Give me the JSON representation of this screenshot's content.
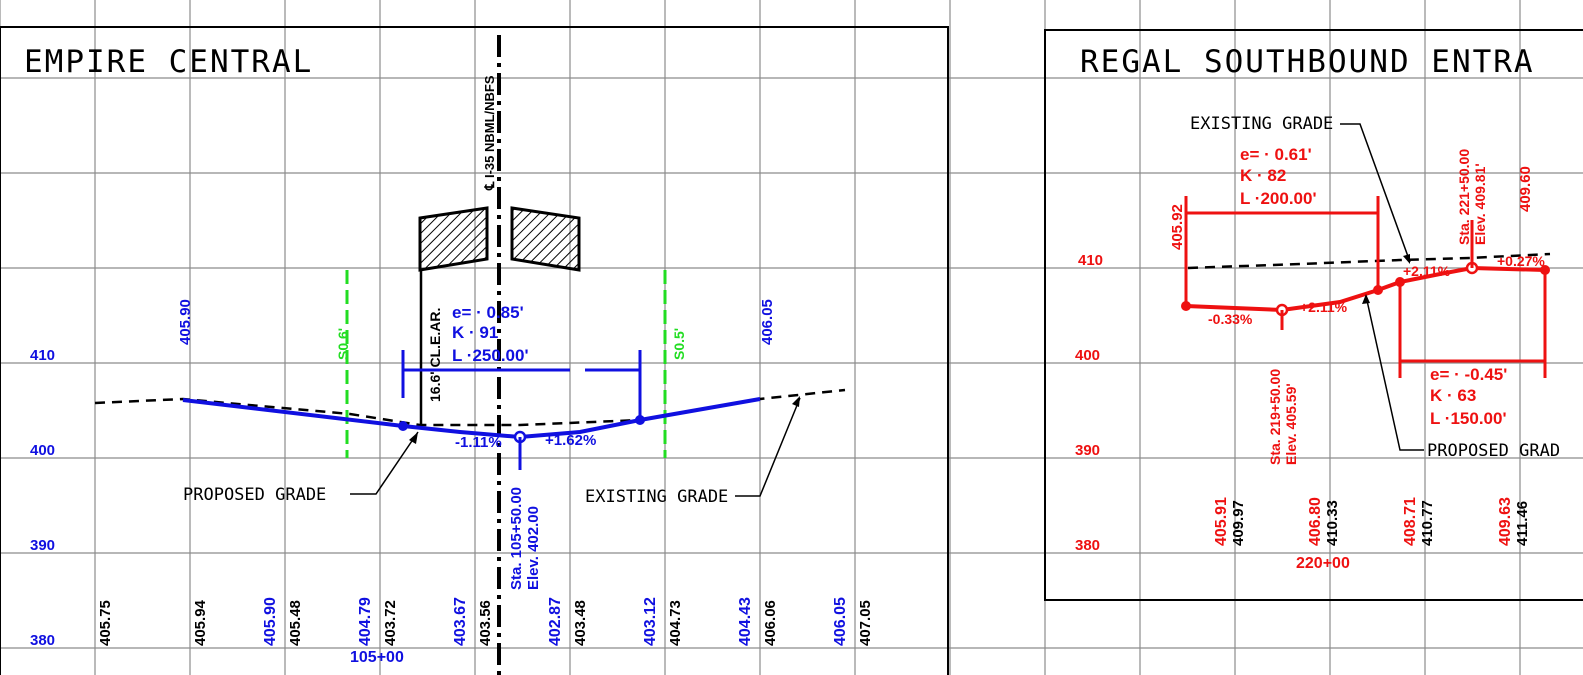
{
  "left": {
    "title": "EMPIRE CENTRAL",
    "centerline": "℄ I-35 NBML/NBFS",
    "clearance": "16.6' CL.E.AR.",
    "curve": {
      "e": "e= · 0.85'",
      "k": "K · 91",
      "l": "L ·250.00'"
    },
    "elev_left_top": "405.90",
    "elev_right_top": "406.05",
    "green_left": "S0.6'",
    "green_right": "S0.5'",
    "elev_labels": [
      "410",
      "400",
      "390",
      "380"
    ],
    "proposed_grade": "PROPOSED GRADE",
    "existing_grade": "EXISTING GRADE",
    "grades": [
      "-1.11%",
      "+1.62%"
    ],
    "pvi_station": "Sta. 105+50.00",
    "pvi_elev": "Elev. 402.00",
    "station": "105+00",
    "bottom_pairs": [
      {
        "blue": "",
        "black": "405.75"
      },
      {
        "blue": "405.90",
        "black": "405.94"
      },
      {
        "blue": "404.79",
        "black": "405.48"
      },
      {
        "blue": "403.67",
        "black": "403.72"
      },
      {
        "blue": "402.87",
        "black": "403.56"
      },
      {
        "blue": "403.12",
        "black": "403.48"
      },
      {
        "blue": "404.43",
        "black": "404.73"
      },
      {
        "blue": "406.05",
        "black": "406.06"
      },
      {
        "blue": "",
        "black": "407.05"
      }
    ]
  },
  "right": {
    "title": "REGAL SOUTHBOUND ENTRA",
    "existing_grade": "EXISTING GRADE",
    "proposed_grade": "PROPOSED GRAD",
    "curve1": {
      "e": "e= · 0.61'",
      "k": "K · 82",
      "l": "L ·200.00'"
    },
    "curve2": {
      "e": "e= · -0.45'",
      "k": "K · 63",
      "l": "L ·150.00'"
    },
    "pvi1_station": "Sta. 221+50.00",
    "pvi1_elev": "Elev. 409.81'",
    "pvi2_station": "Sta. 219+50.00",
    "pvi2_elev": "Elev. 405.59'",
    "elev_left": "405.92",
    "elev_right": "409.60",
    "grades": [
      "-0.33%",
      "+2.11%",
      "+2.11%",
      "+0.27%"
    ],
    "elev_labels": [
      "410",
      "400",
      "390",
      "380"
    ],
    "station": "220+00",
    "bottom_pairs": [
      {
        "red": "405.91",
        "black": "409.97"
      },
      {
        "red": "406.80",
        "black": "410.33"
      },
      {
        "red": "408.71",
        "black": "410.77"
      },
      {
        "red": "409.63",
        "black": "411.46"
      }
    ]
  },
  "colors": {
    "blue": "#1010e0",
    "red": "#ee1111",
    "green": "#22dd22",
    "grid": "#8c8c8c"
  }
}
